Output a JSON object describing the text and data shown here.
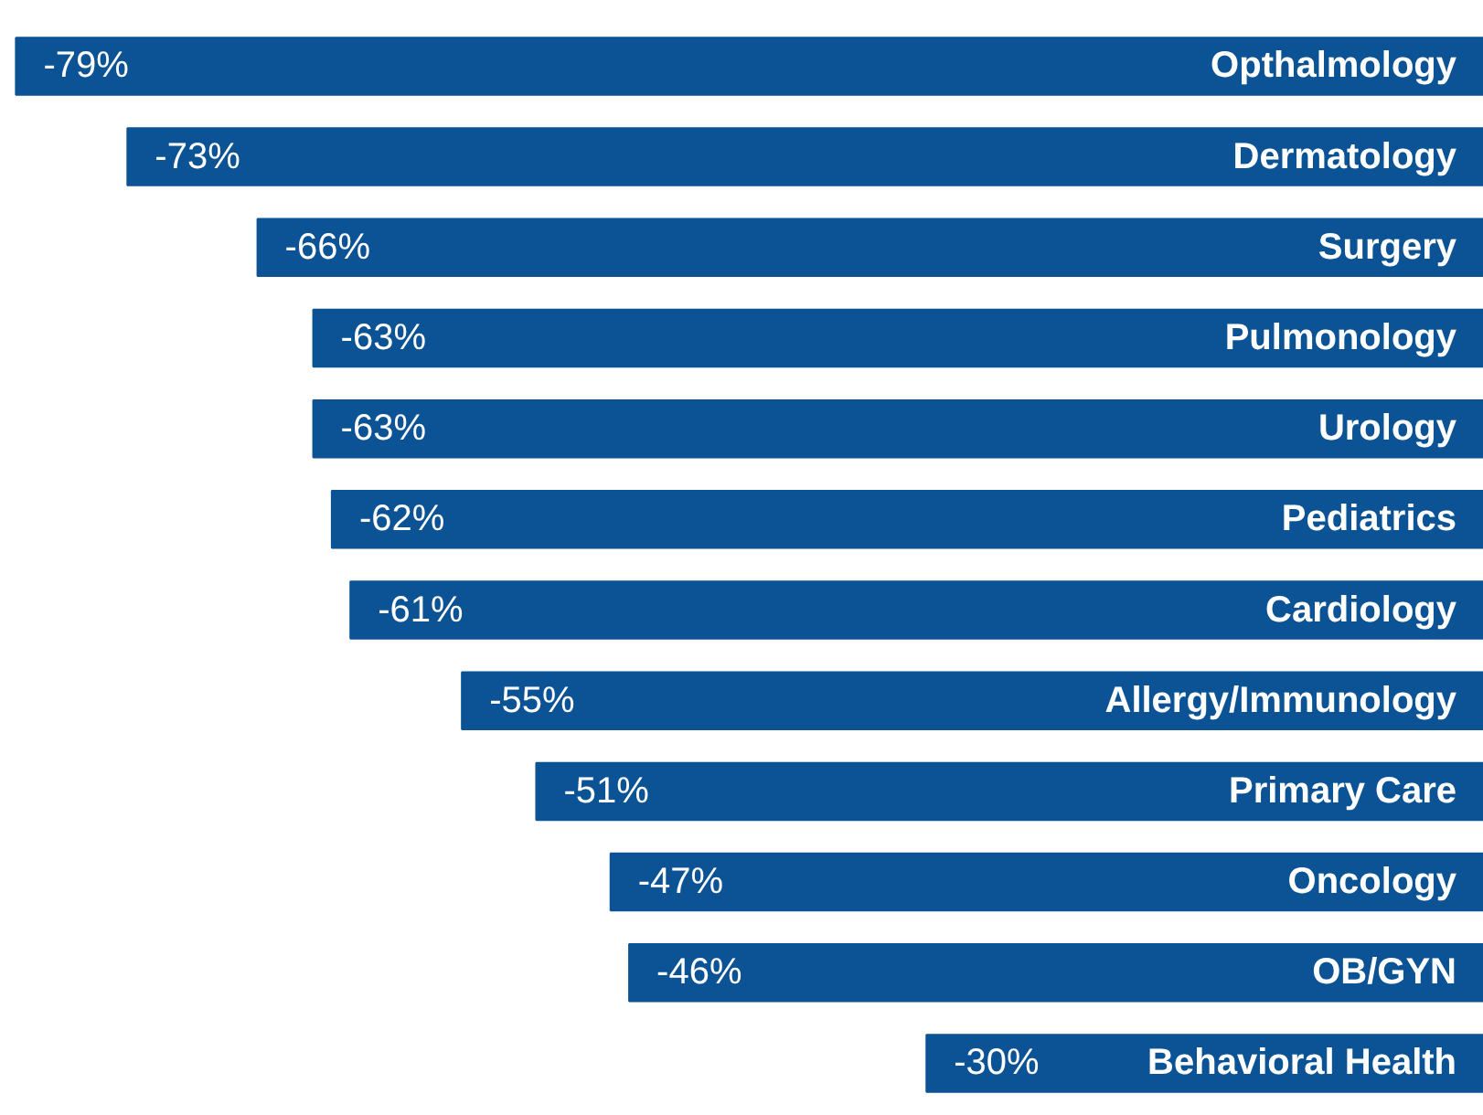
{
  "chart_data": {
    "type": "bar",
    "orientation": "horizontal",
    "categories": [
      "Opthalmology",
      "Dermatology",
      "Surgery",
      "Pulmonology",
      "Urology",
      "Pediatrics",
      "Cardiology",
      "Allergy/Immunology",
      "Primary Care",
      "Oncology",
      "OB/GYN",
      "Behavioral Health"
    ],
    "values": [
      -79,
      -73,
      -66,
      -63,
      -63,
      -62,
      -61,
      -55,
      -51,
      -47,
      -46,
      -30
    ],
    "value_labels": [
      "-79%",
      "-73%",
      "-66%",
      "-63%",
      "-63%",
      "-62%",
      "-61%",
      "-55%",
      "-51%",
      "-47%",
      "-46%",
      "-30%"
    ],
    "color": "#0b5394"
  }
}
